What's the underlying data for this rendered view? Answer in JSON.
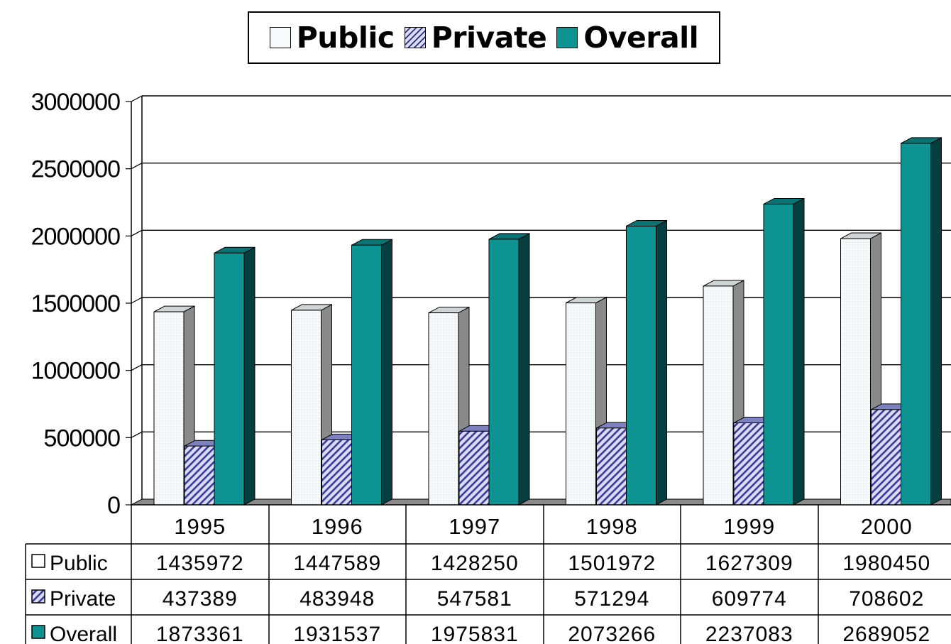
{
  "legend": {
    "items": [
      {
        "name": "Public",
        "icon": "public-swatch"
      },
      {
        "name": "Private",
        "icon": "private-swatch"
      },
      {
        "name": "Overall",
        "icon": "overall-swatch"
      }
    ]
  },
  "colors": {
    "public": "#f6fafa",
    "public_side": "#8a8a8a",
    "private": "#3b3a9a",
    "private_side": "#2c2b7e",
    "overall": "#0e9393",
    "overall_side": "#063f3f"
  },
  "chart_data": {
    "type": "bar",
    "style": "3d-clustered-column",
    "categories": [
      "1995",
      "1996",
      "1997",
      "1998",
      "1999",
      "2000"
    ],
    "series": [
      {
        "name": "Public",
        "values": [
          1435972,
          1447589,
          1428250,
          1501972,
          1627309,
          1980450
        ]
      },
      {
        "name": "Private",
        "values": [
          437389,
          483948,
          547581,
          571294,
          609774,
          708602
        ]
      },
      {
        "name": "Overall",
        "values": [
          1873361,
          1931537,
          1975831,
          2073266,
          2237083,
          2689052
        ]
      }
    ],
    "ylim": [
      0,
      3000000
    ],
    "yticks": [
      "3000000",
      "2500000",
      "2000000",
      "1500000",
      "1000000",
      "500000",
      "0"
    ],
    "grid": true,
    "legend_position": "top-center",
    "data_table": true,
    "title": "",
    "xlabel": "",
    "ylabel": ""
  }
}
